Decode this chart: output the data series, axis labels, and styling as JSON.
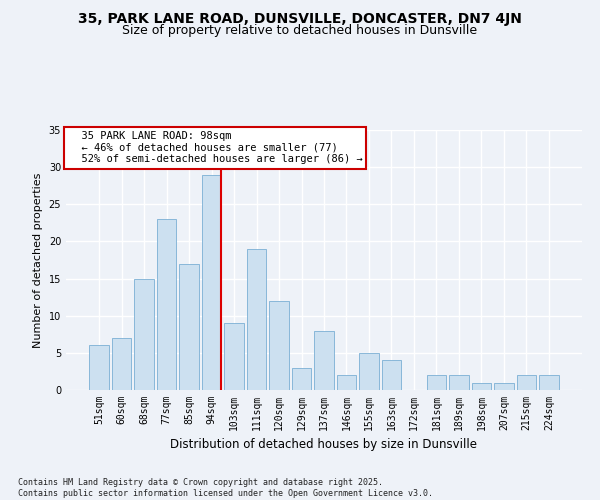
{
  "title1": "35, PARK LANE ROAD, DUNSVILLE, DONCASTER, DN7 4JN",
  "title2": "Size of property relative to detached houses in Dunsville",
  "xlabel": "Distribution of detached houses by size in Dunsville",
  "ylabel": "Number of detached properties",
  "footnote1": "Contains HM Land Registry data © Crown copyright and database right 2025.",
  "footnote2": "Contains public sector information licensed under the Open Government Licence v3.0.",
  "categories": [
    "51sqm",
    "60sqm",
    "68sqm",
    "77sqm",
    "85sqm",
    "94sqm",
    "103sqm",
    "111sqm",
    "120sqm",
    "129sqm",
    "137sqm",
    "146sqm",
    "155sqm",
    "163sqm",
    "172sqm",
    "181sqm",
    "189sqm",
    "198sqm",
    "207sqm",
    "215sqm",
    "224sqm"
  ],
  "values": [
    6,
    7,
    15,
    23,
    17,
    29,
    9,
    19,
    12,
    3,
    8,
    2,
    5,
    4,
    0,
    2,
    2,
    1,
    1,
    2,
    2
  ],
  "bar_color": "#cce0f0",
  "bar_edge_color": "#7bafd4",
  "red_line_index": 5,
  "red_line_color": "#dd0000",
  "annotation_text": "  35 PARK LANE ROAD: 98sqm\n  ← 46% of detached houses are smaller (77)\n  52% of semi-detached houses are larger (86) →",
  "annotation_box_color": "#ffffff",
  "annotation_box_edge": "#cc0000",
  "ylim": [
    0,
    35
  ],
  "yticks": [
    0,
    5,
    10,
    15,
    20,
    25,
    30,
    35
  ],
  "bg_color": "#eef2f8",
  "grid_color": "#ffffff",
  "title1_fontsize": 10,
  "title2_fontsize": 9,
  "xlabel_fontsize": 8.5,
  "ylabel_fontsize": 8,
  "tick_fontsize": 7,
  "annotation_fontsize": 7.5,
  "footnote_fontsize": 6
}
